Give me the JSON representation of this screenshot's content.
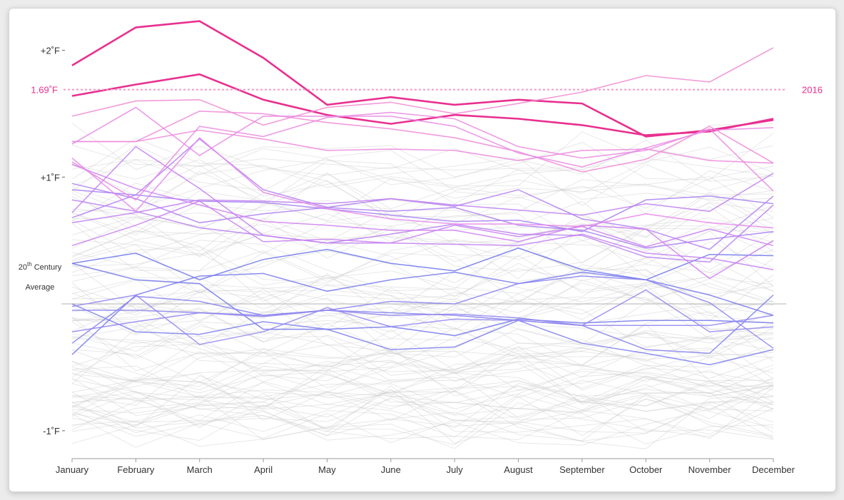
{
  "chart_data": {
    "type": "line",
    "categories": [
      "January",
      "February",
      "March",
      "April",
      "May",
      "June",
      "July",
      "August",
      "September",
      "October",
      "November",
      "December"
    ],
    "y_ticks": [
      {
        "value": 2,
        "label": "+2˚F"
      },
      {
        "value": 1,
        "label": "+1˚F"
      },
      {
        "value": -1,
        "label": "-1˚F"
      }
    ],
    "ylim": [
      -1.22,
      2.25
    ],
    "baseline": {
      "value": 0,
      "label_line1": "20",
      "label_sup": "th",
      "label_line1_rest": " Century",
      "label_line2": "Average"
    },
    "highlight_reference": {
      "value": 1.69,
      "label": "1.69˚F",
      "series_label": "2016",
      "color": "#e8308f"
    },
    "colors": {
      "highlight": "#e8308f",
      "cool": "#7a7ff0",
      "background_line": "#cccccc",
      "axis": "#999999",
      "baseline": "#bbbbbb"
    },
    "highlighted_series": [
      {
        "values": [
          1.88,
          2.18,
          2.23,
          1.94,
          1.57,
          1.63,
          1.57,
          1.61,
          1.58,
          1.32,
          1.37,
          1.45
        ],
        "strong": true
      },
      {
        "values": [
          1.64,
          1.73,
          1.81,
          1.61,
          1.49,
          1.42,
          1.49,
          1.46,
          1.41,
          1.33,
          1.36,
          1.46
        ],
        "strong": true
      },
      {
        "values": [
          1.48,
          1.6,
          1.61,
          1.41,
          1.55,
          1.59,
          1.5,
          1.58,
          1.67,
          1.8,
          1.75,
          2.02
        ],
        "strong": false
      },
      {
        "values": [
          1.28,
          1.28,
          1.52,
          1.5,
          1.43,
          1.38,
          1.31,
          1.2,
          1.04,
          1.14,
          1.4,
          1.11
        ],
        "strong": false
      },
      {
        "values": [
          1.28,
          1.28,
          1.37,
          1.3,
          1.21,
          1.22,
          1.21,
          1.13,
          1.21,
          1.22,
          1.13,
          1.11
        ],
        "strong": false
      },
      {
        "values": [
          1.12,
          0.82,
          1.4,
          1.32,
          1.47,
          1.51,
          1.46,
          1.24,
          1.15,
          1.21,
          1.38,
          0.89
        ],
        "strong": false
      },
      {
        "values": [
          1.26,
          1.55,
          1.17,
          1.48,
          1.48,
          1.48,
          1.4,
          1.19,
          1.08,
          1.23,
          1.37,
          1.39
        ],
        "strong": false
      },
      {
        "values": [
          1.15,
          0.73,
          1.31,
          0.88,
          0.75,
          0.67,
          0.63,
          0.63,
          0.61,
          0.71,
          0.64,
          0.6
        ],
        "strong": false
      }
    ],
    "purple_series": [
      {
        "values": [
          0.9,
          0.86,
          0.81,
          0.8,
          0.75,
          0.7,
          0.65,
          0.66,
          0.57,
          0.82,
          0.85,
          0.79
        ]
      },
      {
        "values": [
          0.95,
          0.83,
          0.64,
          0.71,
          0.76,
          0.73,
          0.76,
          0.62,
          0.58,
          0.44,
          0.51,
          0.57
        ]
      },
      {
        "values": [
          0.68,
          0.86,
          1.3,
          0.9,
          0.76,
          0.83,
          0.77,
          0.9,
          0.67,
          0.59,
          0.43,
          0.85
        ]
      },
      {
        "values": [
          0.82,
          0.73,
          0.6,
          0.54,
          0.48,
          0.55,
          0.63,
          0.55,
          0.54,
          0.37,
          0.33,
          0.78
        ]
      },
      {
        "values": [
          0.64,
          0.72,
          0.82,
          0.81,
          0.79,
          0.83,
          0.78,
          0.74,
          0.7,
          0.79,
          0.73,
          1.03
        ]
      },
      {
        "values": [
          0.72,
          1.24,
          0.91,
          0.54,
          0.48,
          0.48,
          0.47,
          0.46,
          0.55,
          0.4,
          0.36,
          0.27
        ]
      },
      {
        "values": [
          0.46,
          0.62,
          0.81,
          0.49,
          0.51,
          0.48,
          0.62,
          0.53,
          0.61,
          0.45,
          0.59,
          0.46
        ]
      },
      {
        "values": [
          1.1,
          0.91,
          0.78,
          0.65,
          0.62,
          0.58,
          0.58,
          0.49,
          0.62,
          0.59,
          0.2,
          0.5
        ]
      }
    ],
    "blue_series": [
      {
        "values": [
          0.32,
          0.4,
          0.19,
          0.35,
          0.43,
          0.32,
          0.26,
          0.44,
          0.27,
          0.19,
          0.39,
          0.38
        ]
      },
      {
        "values": [
          0.32,
          0.19,
          0.16,
          -0.2,
          -0.2,
          -0.18,
          -0.25,
          -0.12,
          -0.15,
          -0.13,
          -0.13,
          -0.15
        ]
      },
      {
        "values": [
          -0.4,
          0.07,
          0.22,
          0.24,
          0.1,
          0.19,
          0.25,
          0.16,
          0.25,
          0.19,
          0.07,
          -0.09
        ]
      },
      {
        "values": [
          0.0,
          -0.22,
          -0.24,
          -0.14,
          -0.2,
          -0.36,
          -0.34,
          -0.13,
          -0.31,
          -0.39,
          -0.48,
          -0.36
        ]
      },
      {
        "values": [
          -0.31,
          0.06,
          0.02,
          -0.09,
          -0.05,
          -0.07,
          -0.09,
          -0.13,
          -0.17,
          -0.36,
          -0.39,
          0.07
        ]
      },
      {
        "values": [
          -0.05,
          -0.05,
          -0.07,
          -0.09,
          -0.05,
          0.02,
          0.0,
          0.16,
          0.22,
          0.19,
          0.01,
          -0.35
        ]
      },
      {
        "values": [
          -0.22,
          -0.14,
          -0.07,
          -0.1,
          -0.05,
          -0.09,
          -0.08,
          -0.11,
          -0.17,
          -0.17,
          -0.17,
          -0.09
        ]
      },
      {
        "values": [
          -0.02,
          0.07,
          -0.32,
          -0.22,
          -0.03,
          -0.18,
          -0.12,
          -0.13,
          -0.17,
          0.11,
          -0.22,
          -0.18
        ]
      }
    ]
  }
}
